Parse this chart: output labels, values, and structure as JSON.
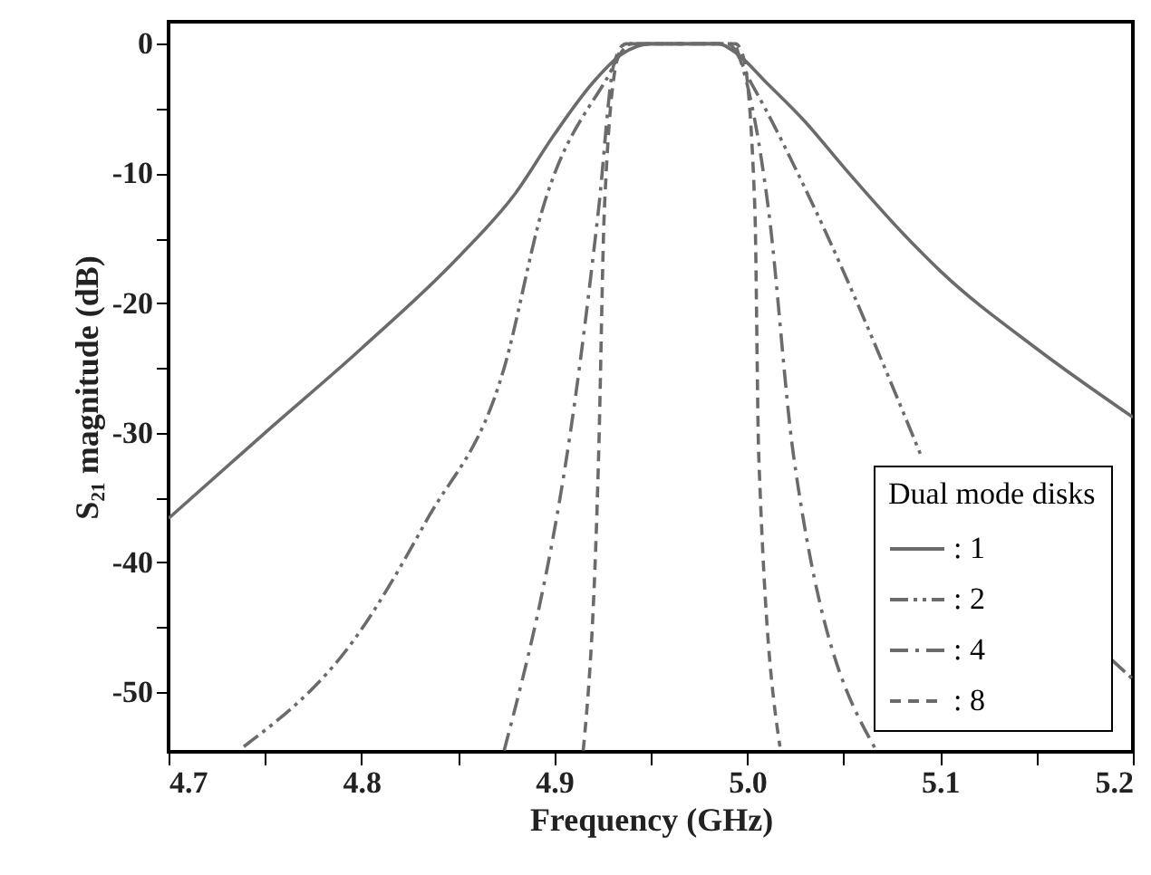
{
  "chart_data": {
    "type": "line",
    "xlabel": "Frequency (GHz)",
    "ylabel": "S₂₁ magnitude (dB)",
    "legend_title": "Dual mode disks",
    "legend": "bottom right",
    "grid": false,
    "marker": "none",
    "xlim": [
      4.7,
      5.2
    ],
    "xticks": [
      4.7,
      {
        "value": 4.75,
        "label": null
      },
      4.8,
      {
        "value": 4.85,
        "label": null
      },
      4.9,
      {
        "value": 4.95,
        "label": null
      },
      {
        "value": 5.0,
        "label": "5.0"
      },
      {
        "value": 5.05,
        "label": null
      },
      5.1,
      {
        "value": 5.15,
        "label": null
      },
      5.2
    ],
    "ylim": [
      -54.6,
      1.7
    ],
    "yticks": [
      0,
      {
        "value": -5,
        "label": null
      },
      -10,
      {
        "value": -15,
        "label": null
      },
      -20,
      {
        "value": -25,
        "label": null
      },
      -30,
      {
        "value": -35,
        "label": null
      },
      -40,
      {
        "value": -45,
        "label": null
      },
      -50
    ],
    "series": [
      {
        "name": ": 1",
        "color": "#6b6b6b",
        "line_style": "solid",
        "x": [
          4.7,
          4.75,
          4.8,
          4.85,
          4.88,
          4.9,
          4.92,
          4.935,
          4.95,
          4.985,
          4.995,
          5.01,
          5.03,
          5.05,
          5.08,
          5.1,
          5.15,
          5.2
        ],
        "values": [
          -36.6,
          -30,
          -23.5,
          -16.5,
          -11.5,
          -7,
          -3,
          -0.8,
          0,
          0,
          -0.8,
          -3,
          -6,
          -9.5,
          -14.5,
          -17.5,
          -23.5,
          -28.8
        ]
      },
      {
        "name": ": 2",
        "color": "#6b6b6b",
        "line_style": "dashdotdot",
        "x": [
          4.739,
          4.796,
          4.834,
          4.874,
          4.894,
          4.926,
          4.94,
          4.99,
          5.002,
          5.035,
          5.09,
          5.14,
          5.189,
          5.2
        ],
        "values": [
          -54.2,
          -46,
          -36.7,
          -25,
          -12.7,
          -3,
          0,
          0,
          -3,
          -12.7,
          -31.7,
          null,
          -47.5,
          -49
        ]
      },
      {
        "name": ": 4",
        "color": "#6b6b6b",
        "line_style": "dashdot",
        "x": [
          4.874,
          4.913,
          4.923,
          4.931,
          4.937,
          4.993,
          4.997,
          5.011,
          5.024,
          5.067
        ],
        "values": [
          -54.5,
          -25,
          -12.7,
          -1.5,
          0,
          0,
          -1.5,
          -12.7,
          -31.7,
          -54.5
        ]
      },
      {
        "name": ": 8",
        "color": "#6b6b6b",
        "line_style": "dashed",
        "x": [
          4.915,
          4.923,
          4.926,
          4.933,
          4.937,
          4.994,
          4.998,
          5.004,
          5.006,
          5.017
        ],
        "values": [
          -54.5,
          -31.7,
          -12.7,
          -1,
          0,
          0,
          -1,
          -12.7,
          -31.7,
          -54.2
        ]
      }
    ]
  }
}
